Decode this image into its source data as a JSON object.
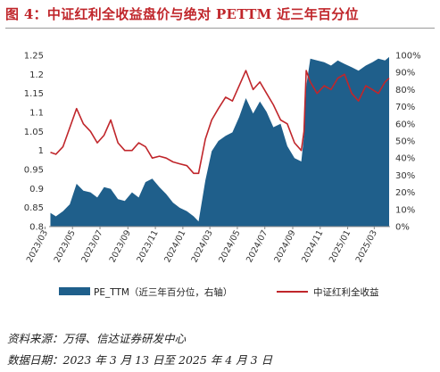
{
  "title": "图 4：中证红利全收益盘价与绝对 PETTM 近三年百分位",
  "footer": {
    "source": "资料来源：万得、信达证券研发中心",
    "date_range": "数据日期：2023 年 3 月 13 日至 2025 年 4 月 3 日"
  },
  "colors": {
    "pe_area": "#1f5f8b",
    "index_line": "#c0262b",
    "title": "#c0262b"
  },
  "chart_data": {
    "type": "area",
    "x_tick_labels": [
      "2023/03",
      "2023/05",
      "2023/07",
      "2023/09",
      "2023/11",
      "2024/01",
      "2024/03",
      "2024/05",
      "2024/07",
      "2024/09",
      "2024/11",
      "2025/01",
      "2025/03"
    ],
    "y_left": {
      "ticks": [
        "0.8",
        "0.85",
        "0.9",
        "0.95",
        "1",
        "1.05",
        "1.1",
        "1.15",
        "1.2",
        "1.25"
      ],
      "range": [
        0.8,
        1.25
      ]
    },
    "y_right": {
      "ticks": [
        "0%",
        "10%",
        "20%",
        "30%",
        "40%",
        "50%",
        "60%",
        "70%",
        "80%",
        "90%",
        "100%"
      ],
      "range": [
        0,
        100
      ]
    },
    "grid": false,
    "legend_position": "bottom",
    "series": [
      {
        "name": "PE_TTM（近三年百分位，右轴）",
        "kind": "area",
        "axis": "right",
        "x": [
          "2023/03/13",
          "2023/03/25",
          "2023/04/10",
          "2023/04/25",
          "2023/05/10",
          "2023/05/25",
          "2023/06/10",
          "2023/06/25",
          "2023/07/10",
          "2023/07/25",
          "2023/08/10",
          "2023/08/25",
          "2023/09/10",
          "2023/09/25",
          "2023/10/10",
          "2023/10/25",
          "2023/11/10",
          "2023/11/25",
          "2023/12/10",
          "2023/12/25",
          "2024/01/10",
          "2024/01/25",
          "2024/02/05",
          "2024/02/20",
          "2024/03/05",
          "2024/03/20",
          "2024/04/05",
          "2024/04/20",
          "2024/05/05",
          "2024/05/20",
          "2024/06/05",
          "2024/06/20",
          "2024/07/05",
          "2024/07/20",
          "2024/08/05",
          "2024/08/20",
          "2024/09/05",
          "2024/09/20",
          "2024/09/26",
          "2024/10/01",
          "2024/10/10",
          "2024/10/25",
          "2024/11/10",
          "2024/11/25",
          "2024/12/10",
          "2024/12/25",
          "2025/01/10",
          "2025/01/25",
          "2025/02/10",
          "2025/02/25",
          "2025/03/10",
          "2025/03/25",
          "2025/04/03"
        ],
        "values": [
          8,
          6,
          9,
          13,
          25,
          21,
          20,
          17,
          23,
          22,
          16,
          15,
          20,
          17,
          26,
          28,
          23,
          19,
          14,
          11,
          9,
          6,
          3,
          27,
          44,
          50,
          53,
          55,
          64,
          75,
          66,
          73,
          67,
          58,
          60,
          47,
          40,
          38,
          53,
          82,
          98,
          97,
          96,
          94,
          97,
          95,
          93,
          91,
          94,
          96,
          98,
          97,
          99
        ]
      },
      {
        "name": "中证红利全收益",
        "kind": "line",
        "axis": "left",
        "x": [
          "2023/03/13",
          "2023/03/25",
          "2023/04/10",
          "2023/04/25",
          "2023/05/10",
          "2023/05/25",
          "2023/06/10",
          "2023/06/25",
          "2023/07/10",
          "2023/07/25",
          "2023/08/10",
          "2023/08/25",
          "2023/09/10",
          "2023/09/25",
          "2023/10/10",
          "2023/10/25",
          "2023/11/10",
          "2023/11/25",
          "2023/12/10",
          "2023/12/25",
          "2024/01/10",
          "2024/01/25",
          "2024/02/05",
          "2024/02/20",
          "2024/03/05",
          "2024/03/20",
          "2024/04/05",
          "2024/04/20",
          "2024/05/05",
          "2024/05/20",
          "2024/06/05",
          "2024/06/20",
          "2024/07/05",
          "2024/07/20",
          "2024/08/05",
          "2024/08/20",
          "2024/09/05",
          "2024/09/20",
          "2024/09/26",
          "2024/10/01",
          "2024/10/10",
          "2024/10/25",
          "2024/11/10",
          "2024/11/25",
          "2024/12/10",
          "2024/12/25",
          "2025/01/10",
          "2025/01/25",
          "2025/02/10",
          "2025/02/25",
          "2025/03/10",
          "2025/03/25",
          "2025/04/03"
        ],
        "values": [
          0.995,
          0.99,
          1.01,
          1.06,
          1.11,
          1.07,
          1.05,
          1.02,
          1.04,
          1.08,
          1.02,
          1.0,
          1.0,
          1.02,
          1.01,
          0.98,
          0.985,
          0.98,
          0.97,
          0.965,
          0.96,
          0.94,
          0.94,
          1.03,
          1.08,
          1.11,
          1.14,
          1.13,
          1.17,
          1.21,
          1.16,
          1.18,
          1.15,
          1.12,
          1.08,
          1.07,
          1.02,
          1.0,
          1.05,
          1.21,
          1.18,
          1.15,
          1.17,
          1.16,
          1.19,
          1.2,
          1.15,
          1.13,
          1.17,
          1.16,
          1.15,
          1.18,
          1.19
        ]
      }
    ]
  }
}
